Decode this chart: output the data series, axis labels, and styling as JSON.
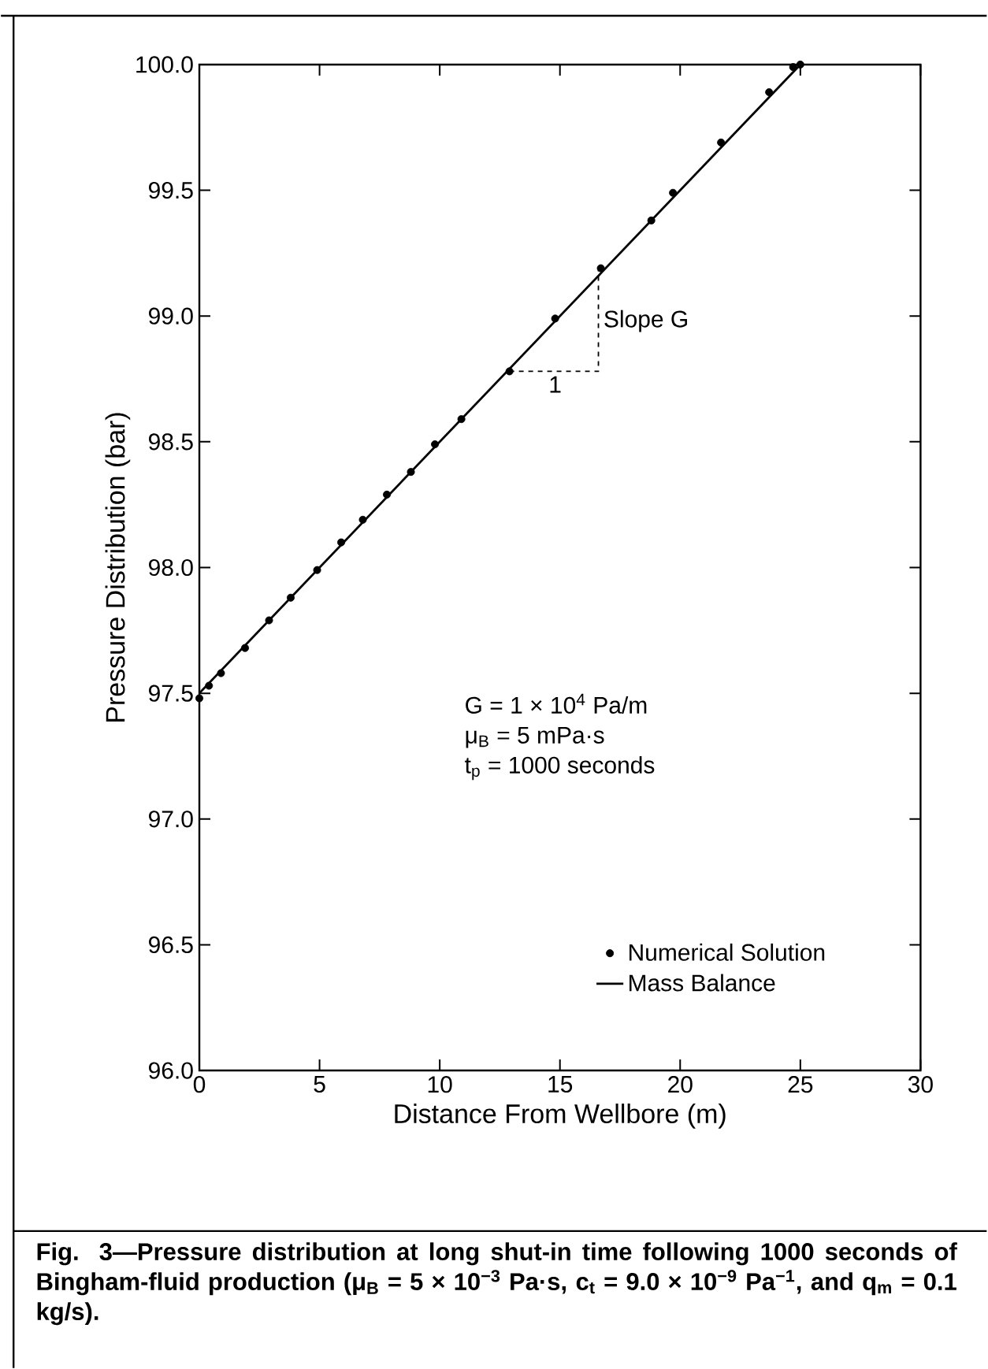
{
  "chart_data": {
    "type": "scatter",
    "xlabel": "Distance From Wellbore (m)",
    "ylabel": "Pressure Distribution (bar)",
    "xlim": [
      0,
      30
    ],
    "ylim": [
      96.0,
      100.0
    ],
    "xticks": [
      0,
      5,
      10,
      15,
      20,
      25,
      30
    ],
    "yticks": [
      {
        "value": 96,
        "label": "96.0"
      },
      {
        "value": 96.5,
        "label": "96.5"
      },
      {
        "value": 97,
        "label": "97.0"
      },
      {
        "value": 97.5,
        "label": "97.5"
      },
      {
        "value": 98,
        "label": "98.0"
      },
      {
        "value": 98.5,
        "label": "98.5"
      },
      {
        "value": 99,
        "label": "99.0"
      },
      {
        "value": 99.5,
        "label": "99.5"
      },
      {
        "value": 100,
        "label": "100.0"
      }
    ],
    "legend": "bottom right",
    "series": [
      {
        "name": "Numerical Solution",
        "marker": "circle",
        "color": "#000000",
        "x": [
          0.0,
          0.4,
          0.9,
          1.9,
          2.9,
          3.8,
          4.9,
          5.9,
          6.8,
          7.8,
          8.8,
          9.8,
          10.9,
          12.9,
          14.8,
          16.7,
          18.8,
          19.7,
          21.7,
          23.7,
          24.7,
          25.0
        ],
        "values": [
          97.48,
          97.53,
          97.58,
          97.68,
          97.79,
          97.88,
          97.99,
          98.1,
          98.19,
          98.29,
          98.38,
          98.49,
          98.59,
          98.78,
          98.99,
          99.19,
          99.38,
          99.49,
          99.69,
          99.89,
          99.99,
          100.0
        ]
      },
      {
        "name": "Mass Balance",
        "type": "line",
        "marker": "none",
        "line_style": "solid",
        "color": "#000000",
        "x": [
          0,
          25
        ],
        "values": [
          97.5,
          100.0
        ]
      },
      {
        "type": "line",
        "marker": "none",
        "line_style": "dashed",
        "color": "#000000",
        "x": [
          12.9,
          16.6,
          16.6
        ],
        "values": [
          98.78,
          98.78,
          99.19
        ]
      }
    ],
    "annotations": [
      "G = 1 × 10$^{4}$ Pa/m",
      "μ$_{B}$ = 5 mPa·s",
      "t$_{p}$ = 1000 seconds",
      {
        "text": "Slope G",
        "x": 16.6,
        "y": 98.98
      },
      {
        "text": "1",
        "x": 14.8,
        "y": 98.78
      },
      "Fig. 3—Pressure distribution at long shut-in time following 1000 seconds of Bingham-fluid production (μ$_{B}$ = 5 × 10$^{−3}$ Pa·s, c$_{t}$ = 9.0 × 10$^{−9}$ Pa$^{−1}$, and q$_{m}$ = 0.1 kg/s)."
    ]
  }
}
